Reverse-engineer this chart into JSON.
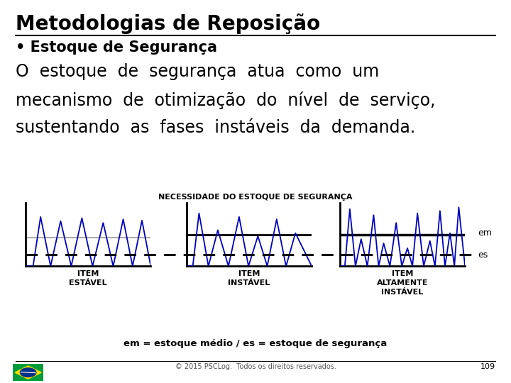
{
  "title": "Metodologias de Reposição",
  "bullet": "Estoque de Segurança",
  "body_line1": "O  estoque  de  segurança  atua  como  um",
  "body_line2": "mecanismo  de  otimização  do  nível  de  serviço,",
  "body_line3": "sustentando  as  fases  instáveis  da  demanda.",
  "diagram_title": "NECESSIDADE DO ESTOQUE DE SEGURANÇA",
  "legend_em": "em",
  "legend_es": "es",
  "caption": "em = estoque médio / es = estoque de segurança",
  "footer": "© 2015 PSCLog.  Todos os direitos reservados.",
  "page_num": "109",
  "item_label1": "ITEM\nESTÁVEL",
  "item_label2": "ITEM\nINSTÁVEL",
  "item_label3": "ITEM\nALTAMENTE\nINSTÁVEL",
  "bg_color": "#ffffff",
  "title_color": "#000000",
  "blue_color": "#0000bb",
  "black_color": "#000000",
  "em_line_color1": "#999999",
  "em_line_color2": "#000000",
  "em_line_color3": "#000000"
}
